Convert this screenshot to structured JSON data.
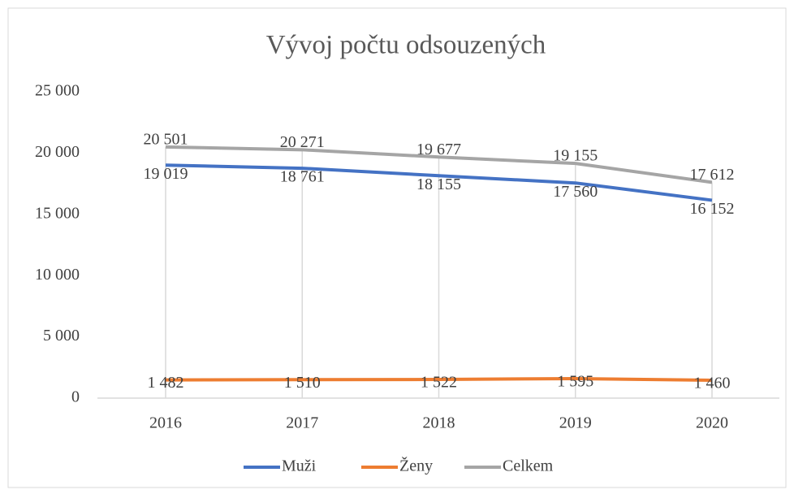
{
  "chart_data": {
    "type": "line",
    "title": "Vývoj počtu odsouzených",
    "categories": [
      "2016",
      "2017",
      "2018",
      "2019",
      "2020"
    ],
    "series": [
      {
        "name": "Muži",
        "color": "#4472c4",
        "values": [
          19019,
          18761,
          18155,
          17560,
          16152
        ],
        "value_labels": [
          "19 019",
          "18 761",
          "18 155",
          "17 560",
          "16 152"
        ]
      },
      {
        "name": "Ženy",
        "color": "#ed7d31",
        "values": [
          1482,
          1510,
          1522,
          1595,
          1460
        ],
        "value_labels": [
          "1 482",
          "1 510",
          "1 522",
          "1 595",
          "1 460"
        ]
      },
      {
        "name": "Celkem",
        "color": "#a5a5a5",
        "values": [
          20501,
          20271,
          19677,
          19155,
          17612
        ],
        "value_labels": [
          "20 501",
          "20 271",
          "19 677",
          "19 155",
          "17 612"
        ]
      }
    ],
    "ylim": [
      0,
      25000
    ],
    "yticks": [
      0,
      {
        "value": 5000,
        "label": "5 000"
      },
      {
        "value": 10000,
        "label": "10 000"
      },
      {
        "value": 15000,
        "label": "15 000"
      },
      {
        "value": 20000,
        "label": "20 000"
      },
      {
        "value": 25000,
        "label": "25 000"
      }
    ],
    "drop_lines": true,
    "legend": "bottom"
  }
}
